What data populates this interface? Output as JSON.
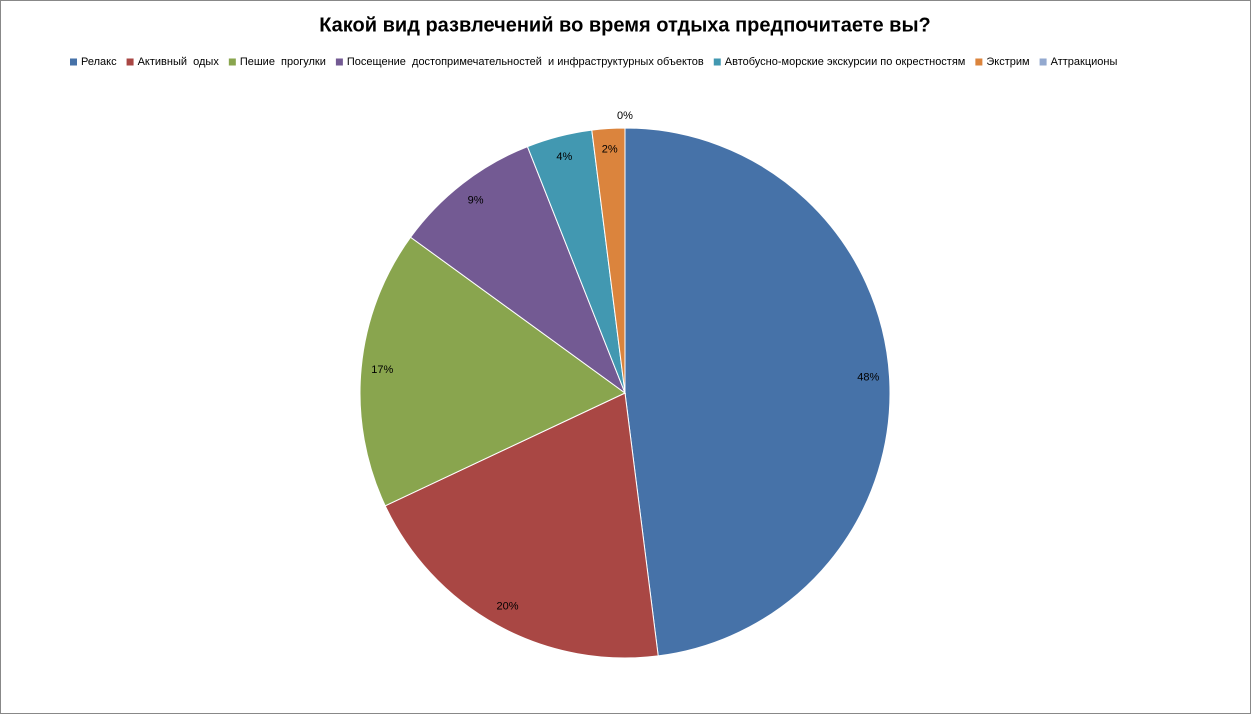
{
  "chart_data": {
    "type": "pie",
    "title": "Какой вид развлечений во время отдыха предпочитаете вы?",
    "categories": [
      "Релакс",
      "Активный  одых",
      "Пешие  прогулки",
      "Посещение  достопримечательностей  и инфраструктурных объектов",
      "Автобусно-морские экскурсии по окрестностям",
      "Экстрим",
      "Аттракционы"
    ],
    "values": [
      48,
      20,
      17,
      9,
      4,
      2,
      0
    ],
    "value_labels": [
      "48%",
      "20%",
      "17%",
      "9%",
      "4%",
      "2%",
      "0%"
    ],
    "colors": [
      "#4672a8",
      "#a94744",
      "#89a54e",
      "#735a93",
      "#4298b1",
      "#db843d",
      "#93a9cf"
    ],
    "legend": "top"
  }
}
